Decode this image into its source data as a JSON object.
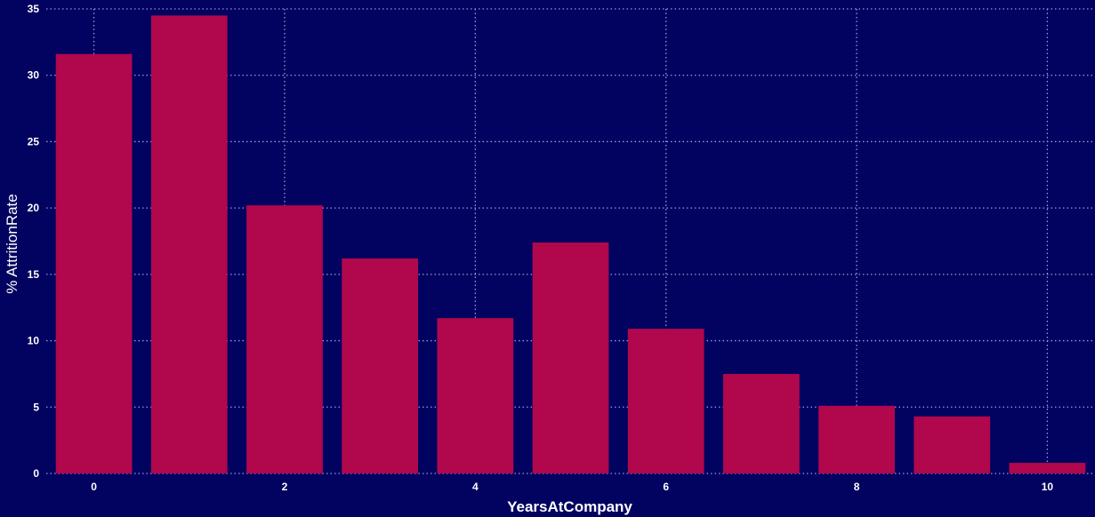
{
  "chart_data": {
    "type": "bar",
    "x": [
      0,
      1,
      2,
      3,
      4,
      5,
      6,
      7,
      8,
      9,
      10
    ],
    "values": [
      31.6,
      34.5,
      20.2,
      16.2,
      11.7,
      17.4,
      10.9,
      7.5,
      5.1,
      4.3,
      0.8
    ],
    "xlabel": "YearsAtCompany",
    "ylabel": "% AttritionRate",
    "xticks": [
      0,
      2,
      4,
      6,
      8,
      10
    ],
    "yticks": [
      0,
      5,
      10,
      15,
      20,
      25,
      30,
      35
    ],
    "ylim": [
      0,
      35
    ],
    "xlim": [
      -0.5,
      10.5
    ],
    "grid": true,
    "colors": {
      "background": "#020260",
      "bar": "#b0074d",
      "grid": "#9a9ad8",
      "text": "#ffffff"
    }
  }
}
